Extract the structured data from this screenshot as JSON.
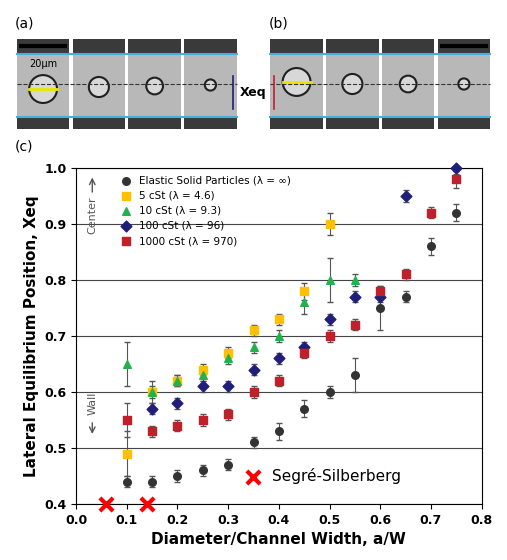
{
  "panels": {
    "a": "(a)",
    "b": "(b)",
    "c": "(c)",
    "scale_bar": "20µm",
    "xeq": "Xeq"
  },
  "chart_data": {
    "type": "scatter",
    "xlabel": "Diameter/Channel Width, a/W",
    "ylabel": "Lateral Equilibrium Position, Xeq",
    "annotations": [
      "Center",
      "Wall"
    ],
    "xlim": [
      0.0,
      0.8
    ],
    "xticks": [
      0.0,
      0.1,
      0.2,
      0.3,
      0.4,
      0.5,
      0.6,
      0.7,
      0.8
    ],
    "ylim": [
      0.4,
      1.0
    ],
    "yticks": [
      0.4,
      0.5,
      0.6,
      0.7,
      0.8,
      0.9,
      1.0
    ],
    "grid": true,
    "legend": "upper left",
    "series": [
      {
        "name": "Elastic Solid Particles (λ = ∞)",
        "color": "#333333",
        "marker": "circle",
        "x": [
          0.1,
          0.15,
          0.2,
          0.25,
          0.3,
          0.35,
          0.4,
          0.45,
          0.5,
          0.55,
          0.6,
          0.65,
          0.7,
          0.75
        ],
        "values": [
          0.44,
          0.44,
          0.45,
          0.46,
          0.47,
          0.51,
          0.53,
          0.57,
          0.6,
          0.63,
          0.75,
          0.77,
          0.86,
          0.92
        ],
        "errors": [
          0.01,
          0.01,
          0.01,
          0.01,
          0.01,
          0.01,
          0.015,
          0.015,
          0.01,
          0.03,
          0.04,
          0.01,
          0.015,
          0.015
        ]
      },
      {
        "name": "5 cSt (λ = 4.6)",
        "color": "#ffc000",
        "marker": "square",
        "x": [
          0.1,
          0.15,
          0.2,
          0.25,
          0.3,
          0.35,
          0.4,
          0.45,
          0.5
        ],
        "values": [
          0.49,
          0.6,
          0.62,
          0.64,
          0.67,
          0.71,
          0.73,
          0.78,
          0.9
        ],
        "errors": [
          0.04,
          0.02,
          0.01,
          0.01,
          0.01,
          0.01,
          0.01,
          0.015,
          0.02
        ]
      },
      {
        "name": "10 cSt (λ = 9.3)",
        "color": "#22b14c",
        "marker": "triangle",
        "x": [
          0.1,
          0.15,
          0.2,
          0.25,
          0.3,
          0.35,
          0.4,
          0.45,
          0.5,
          0.55
        ],
        "values": [
          0.65,
          0.6,
          0.62,
          0.63,
          0.66,
          0.68,
          0.7,
          0.76,
          0.8,
          0.8
        ],
        "errors": [
          0.04,
          0.01,
          0.01,
          0.01,
          0.01,
          0.01,
          0.01,
          0.02,
          0.04,
          0.01
        ]
      },
      {
        "name": "100 cSt (λ = 96)",
        "color": "#1f1f7a",
        "marker": "diamond",
        "x": [
          0.15,
          0.2,
          0.25,
          0.3,
          0.35,
          0.4,
          0.45,
          0.5,
          0.55,
          0.6,
          0.65,
          0.75
        ],
        "values": [
          0.57,
          0.58,
          0.61,
          0.61,
          0.64,
          0.66,
          0.68,
          0.73,
          0.77,
          0.77,
          0.95,
          1.0
        ],
        "errors": [
          0.01,
          0.01,
          0.01,
          0.01,
          0.01,
          0.01,
          0.01,
          0.01,
          0.01,
          0.01,
          0.01,
          0.01
        ]
      },
      {
        "name": "1000 cSt (λ = 970)",
        "color": "#c0202a",
        "marker": "square",
        "x": [
          0.1,
          0.15,
          0.2,
          0.25,
          0.3,
          0.35,
          0.4,
          0.45,
          0.5,
          0.55,
          0.6,
          0.65,
          0.7,
          0.75
        ],
        "values": [
          0.55,
          0.53,
          0.54,
          0.55,
          0.56,
          0.6,
          0.62,
          0.67,
          0.7,
          0.72,
          0.78,
          0.81,
          0.92,
          0.98
        ],
        "errors": [
          0.03,
          0.01,
          0.01,
          0.01,
          0.01,
          0.01,
          0.01,
          0.01,
          0.01,
          0.01,
          0.01,
          0.01,
          0.01,
          0.015
        ]
      },
      {
        "name": "Segré-Silberberg",
        "color": "#ff0000",
        "marker": "x",
        "x": [
          0.06,
          0.14
        ],
        "values": [
          0.4,
          0.4
        ]
      }
    ]
  }
}
